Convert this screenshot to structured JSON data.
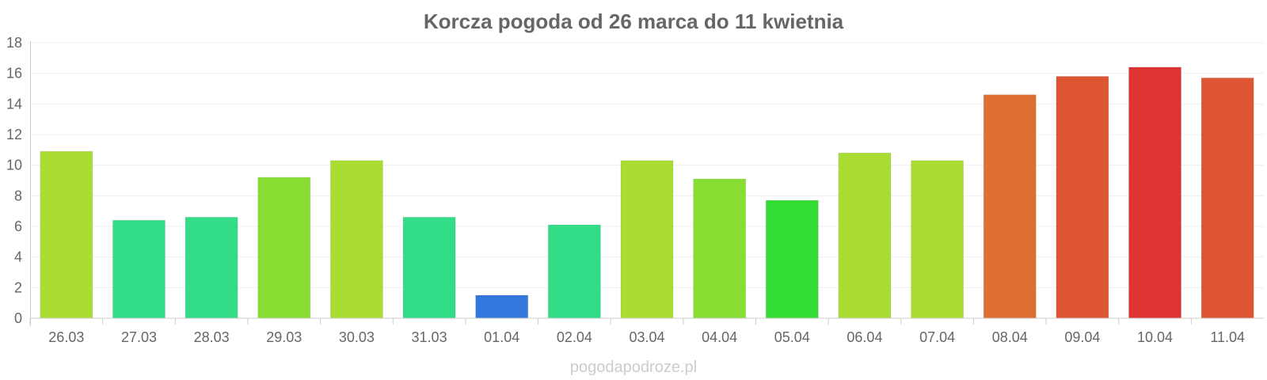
{
  "chart_data": {
    "type": "bar",
    "title": "Korcza pogoda od 26 marca do 11 kwietnia",
    "xlabel": "",
    "ylabel": "",
    "ylim": [
      0,
      18
    ],
    "yticks": [
      0,
      2,
      4,
      6,
      8,
      10,
      12,
      14,
      16,
      18
    ],
    "grid": true,
    "categories": [
      "26.03",
      "27.03",
      "28.03",
      "29.03",
      "30.03",
      "31.03",
      "01.04",
      "02.04",
      "03.04",
      "04.04",
      "05.04",
      "06.04",
      "07.04",
      "08.04",
      "09.04",
      "10.04",
      "11.04"
    ],
    "values": [
      10.9,
      6.4,
      6.6,
      9.2,
      10.3,
      6.6,
      1.5,
      6.1,
      10.3,
      9.1,
      7.7,
      10.8,
      10.3,
      14.6,
      15.8,
      16.4,
      15.7
    ],
    "colors": [
      "#aadd33",
      "#33dd88",
      "#33dd88",
      "#88dd33",
      "#aadd33",
      "#33dd88",
      "#3377dd",
      "#33dd88",
      "#aadd33",
      "#88dd33",
      "#33dd33",
      "#aadd33",
      "#aadd33",
      "#dd6f33",
      "#dd5533",
      "#dd3333",
      "#dd5533"
    ]
  },
  "watermark": "pogodapodroze.pl"
}
